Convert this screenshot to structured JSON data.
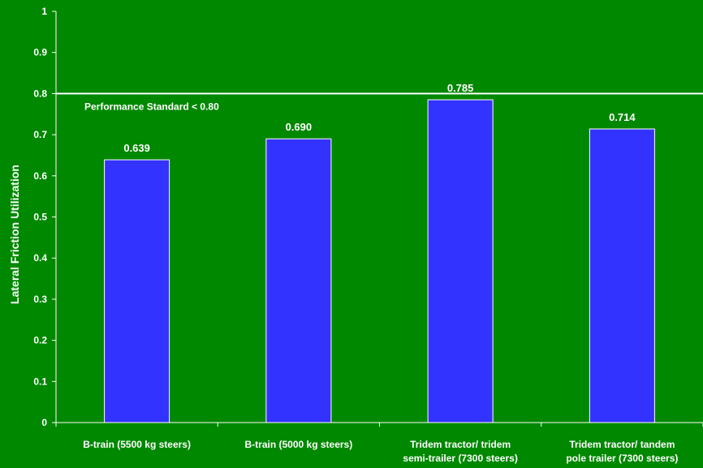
{
  "chart_data": {
    "type": "bar",
    "ylabel": "Lateral Friction Utilization",
    "xlabel": "",
    "ylim": [
      0,
      1
    ],
    "yticks": [
      "0",
      "0.1",
      "0.2",
      "0.3",
      "0.4",
      "0.5",
      "0.6",
      "0.7",
      "0.8",
      "0.9",
      "1"
    ],
    "categories": [
      [
        "B-train (5500 kg steers)"
      ],
      [
        "B-train (5000 kg steers)"
      ],
      [
        "Tridem tractor/ tridem",
        "semi-trailer (7300 steers)"
      ],
      [
        "Tridem tractor/ tandem",
        "pole trailer (7300 steers)"
      ]
    ],
    "values": [
      0.639,
      0.69,
      0.785,
      0.714
    ],
    "value_labels": [
      "0.639",
      "0.690",
      "0.785",
      "0.714"
    ],
    "reference_line": {
      "value": 0.8,
      "label": "Performance Standard < 0.80"
    },
    "grid": false,
    "colors": {
      "background": "#008800",
      "bar": "#3333ff",
      "bar_edge": "#ffffff",
      "text": "#ffffff"
    }
  }
}
